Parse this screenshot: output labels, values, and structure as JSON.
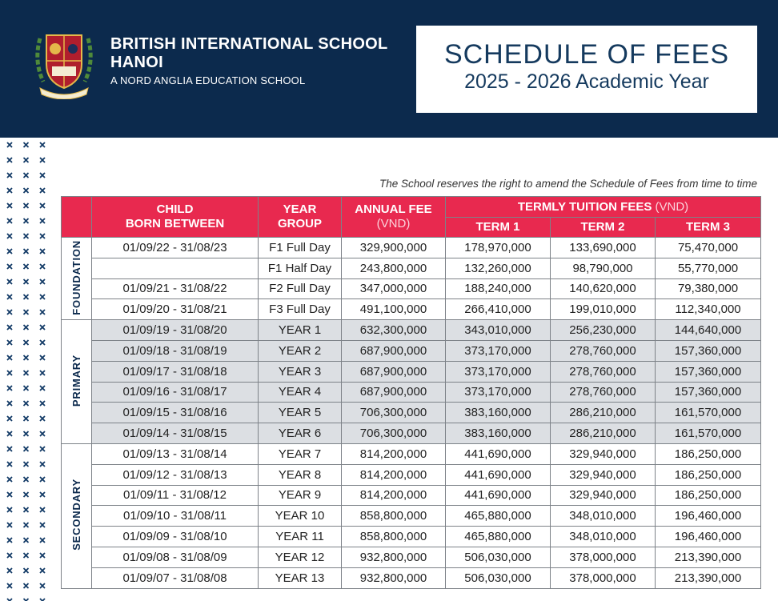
{
  "header": {
    "school_name": [
      "BRITISH INTERNATIONAL SCHOOL",
      "HANOI"
    ],
    "tagline": "A NORD ANGLIA EDUCATION SCHOOL",
    "title": "SCHEDULE OF FEES",
    "subtitle": "2025 - 2026 Academic Year"
  },
  "note": "The School reserves the right to amend the Schedule of Fees from time to time",
  "table": {
    "header": {
      "child_born_between": [
        "CHILD",
        "BORN BETWEEN"
      ],
      "year_group": [
        "YEAR",
        "GROUP"
      ],
      "annual_fee": "ANNUAL FEE",
      "annual_fee_unit": "(VND)",
      "termly": "TERMLY TUITION FEES",
      "termly_unit": "(VND)",
      "terms": [
        "TERM 1",
        "TERM 2",
        "TERM 3"
      ]
    },
    "sections": [
      {
        "name": "FOUNDATION",
        "rows": [
          [
            "01/09/22 - 31/08/23",
            "F1 Full Day",
            "329,900,000",
            "178,970,000",
            "133,690,000",
            "75,470,000"
          ],
          [
            null,
            "F1 Half Day",
            "243,800,000",
            "132,260,000",
            "98,790,000",
            "55,770,000"
          ],
          [
            "01/09/21 - 31/08/22",
            "F2 Full Day",
            "347,000,000",
            "188,240,000",
            "140,620,000",
            "79,380,000"
          ],
          [
            "01/09/20 - 31/08/21",
            "F3 Full Day",
            "491,100,000",
            "266,410,000",
            "199,010,000",
            "112,340,000"
          ]
        ]
      },
      {
        "name": "PRIMARY",
        "rows": [
          [
            "01/09/19 - 31/08/20",
            "YEAR 1",
            "632,300,000",
            "343,010,000",
            "256,230,000",
            "144,640,000"
          ],
          [
            "01/09/18 - 31/08/19",
            "YEAR 2",
            "687,900,000",
            "373,170,000",
            "278,760,000",
            "157,360,000"
          ],
          [
            "01/09/17 - 31/08/18",
            "YEAR 3",
            "687,900,000",
            "373,170,000",
            "278,760,000",
            "157,360,000"
          ],
          [
            "01/09/16 - 31/08/17",
            "YEAR 4",
            "687,900,000",
            "373,170,000",
            "278,760,000",
            "157,360,000"
          ],
          [
            "01/09/15 - 31/08/16",
            "YEAR 5",
            "706,300,000",
            "383,160,000",
            "286,210,000",
            "161,570,000"
          ],
          [
            "01/09/14 - 31/08/15",
            "YEAR 6",
            "706,300,000",
            "383,160,000",
            "286,210,000",
            "161,570,000"
          ]
        ]
      },
      {
        "name": "SECONDARY",
        "rows": [
          [
            "01/09/13 - 31/08/14",
            "YEAR 7",
            "814,200,000",
            "441,690,000",
            "329,940,000",
            "186,250,000"
          ],
          [
            "01/09/12 - 31/08/13",
            "YEAR 8",
            "814,200,000",
            "441,690,000",
            "329,940,000",
            "186,250,000"
          ],
          [
            "01/09/11 - 31/08/12",
            "YEAR 9",
            "814,200,000",
            "441,690,000",
            "329,940,000",
            "186,250,000"
          ],
          [
            "01/09/10 - 31/08/11",
            "YEAR 10",
            "858,800,000",
            "465,880,000",
            "348,010,000",
            "196,460,000"
          ],
          [
            "01/09/09 - 31/08/10",
            "YEAR 11",
            "858,800,000",
            "465,880,000",
            "348,010,000",
            "196,460,000"
          ],
          [
            "01/09/08 - 31/08/09",
            "YEAR 12",
            "932,800,000",
            "506,030,000",
            "378,000,000",
            "213,390,000"
          ],
          [
            "01/09/07 - 31/08/08",
            "YEAR 13",
            "932,800,000",
            "506,030,000",
            "378,000,000",
            "213,390,000"
          ]
        ]
      }
    ]
  }
}
